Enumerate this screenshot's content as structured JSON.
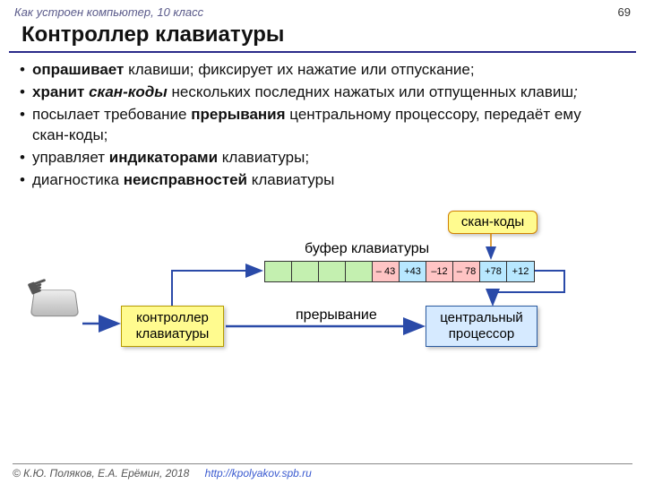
{
  "header": {
    "course": "Как устроен компьютер, 10 класс",
    "page": "69"
  },
  "title": "Контроллер клавиатуры",
  "bullets": [
    {
      "pre": "",
      "bold": "опрашивает",
      "post": " клавиши; фиксирует их нажатие или отпускание;"
    },
    {
      "pre": "",
      "bold": "хранит",
      "ital": " скан-коды",
      "post": " нескольких последних нажатых или отпущенных клавиш",
      "tail": ";"
    },
    {
      "pre": "посылает требование ",
      "bold": "прерывания",
      "post": " центральному процессору, передаёт ему скан-коды;"
    },
    {
      "pre": " управляет ",
      "bold": "индикаторами",
      "post": " клавиатуры;"
    },
    {
      "pre": "диагностика ",
      "bold": "неисправностей",
      "post": " клавиатуры"
    }
  ],
  "diagram": {
    "scan_label": "скан-коды",
    "buffer_label": "буфер клавиатуры",
    "interrupt_label": "прерывание",
    "controller_box": "контроллер\nклавиатуры",
    "cpu_box": "центральный\nпроцессор",
    "buffer_cells": [
      {
        "txt": "",
        "bg": "#c4f0b0"
      },
      {
        "txt": "",
        "bg": "#c4f0b0"
      },
      {
        "txt": "",
        "bg": "#c4f0b0"
      },
      {
        "txt": "",
        "bg": "#c4f0b0"
      },
      {
        "txt": "– 43",
        "bg": "#ffc4c4"
      },
      {
        "txt": "+43",
        "bg": "#b8e8ff"
      },
      {
        "txt": "–12",
        "bg": "#ffc4c4"
      },
      {
        "txt": "– 78",
        "bg": "#ffc4c4"
      },
      {
        "txt": "+78",
        "bg": "#b8e8ff"
      },
      {
        "txt": "+12",
        "bg": "#b8e8ff"
      }
    ],
    "colors": {
      "arrow": "#2a4aa8",
      "yellow_box_bg": "#fffb8f",
      "yellow_box_border": "#b59b00",
      "blue_box_bg": "#d6eaff",
      "blue_box_border": "#2a5aa0"
    }
  },
  "footer": {
    "copyright": "© К.Ю. Поляков, Е.А. Ерёмин, 2018",
    "url": "http://kpolyakov.spb.ru"
  }
}
